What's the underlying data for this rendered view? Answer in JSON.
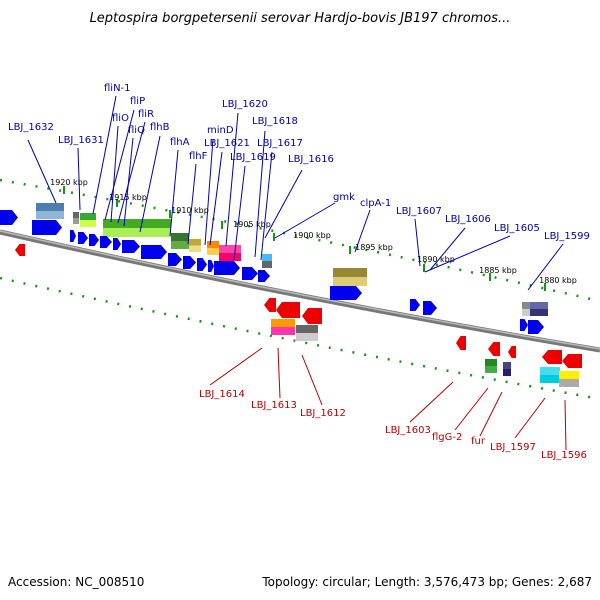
{
  "title": "Leptospira borgpetersenii serovar Hardjo-bovis JB197 chromos...",
  "footer": {
    "accession": "Accession: NC_008510",
    "summary": "Topology: circular; Length: 3,576,473 bp; Genes: 2,687"
  },
  "colors": {
    "forward_strand_gene": "#0000ee",
    "reverse_strand_gene": "#ee0000",
    "top_label": "#0000aa",
    "bottom_label": "#bb0000",
    "tick": "#119911",
    "backbone": "#888888"
  },
  "scale": [
    "1920 kbp",
    "1915 kbp",
    "1910 kbp",
    "1905 kbp",
    "1900 kbp",
    "1895 kbp",
    "1890 kbp",
    "1885 kbp",
    "1880 kbp"
  ],
  "top_labels": [
    "LBJ_1632",
    "LBJ_1631",
    "fliN-1",
    "fliP",
    "fliO",
    "fliR",
    "fliQ",
    "flhB",
    "flhA",
    "flhF",
    "minD",
    "LBJ_1621",
    "LBJ_1620",
    "LBJ_1618",
    "LBJ_1619",
    "LBJ_1617",
    "LBJ_1616",
    "gmk",
    "clpA-1",
    "LBJ_1607",
    "LBJ_1606",
    "LBJ_1605",
    "LBJ_1599"
  ],
  "bottom_labels": [
    "LBJ_1614",
    "LBJ_1613",
    "LBJ_1612",
    "LBJ_1603",
    "flgG-2",
    "fur",
    "LBJ_1597",
    "LBJ_1596"
  ]
}
